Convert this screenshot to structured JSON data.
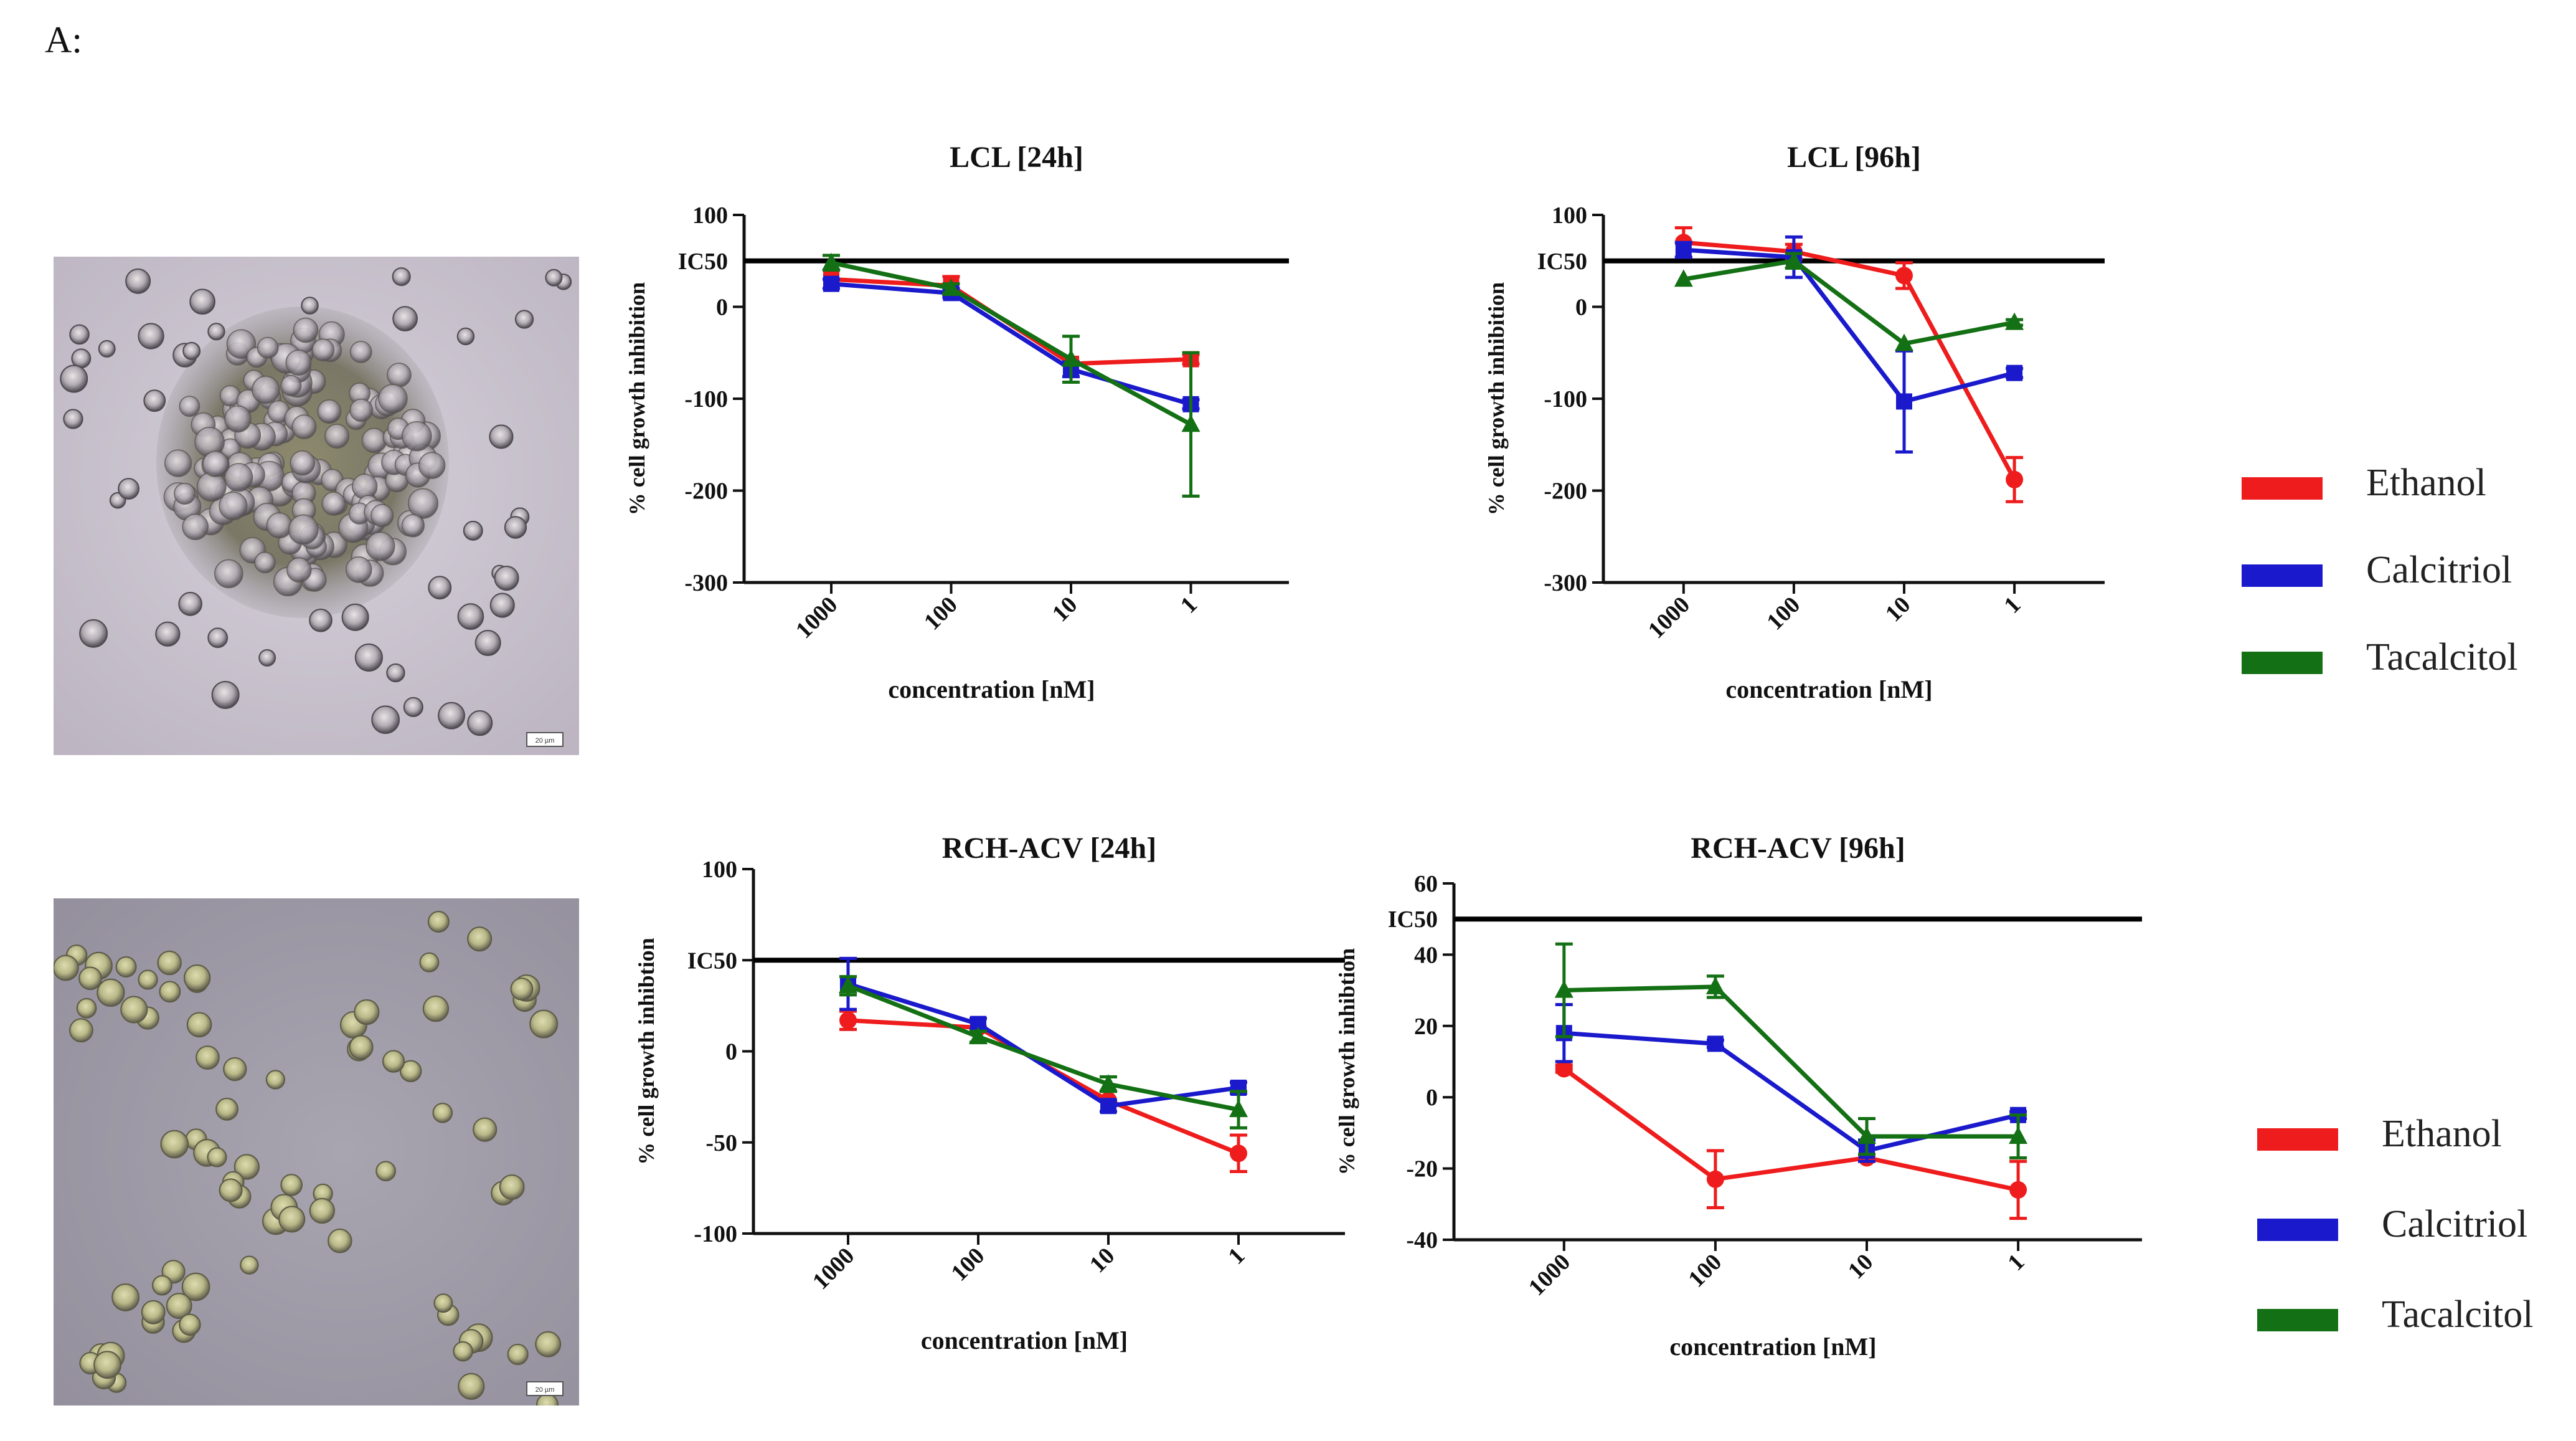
{
  "panel_label": "A:",
  "micrographs": [
    {
      "name": "LCL",
      "scale_label": "20 µm"
    },
    {
      "name": "RCH-ACV",
      "scale_label": "20 µm"
    }
  ],
  "series_colors": {
    "Ethanol": "#ee1c1c",
    "Calcitriol": "#1a1acc",
    "Tacalcitol": "#147014"
  },
  "legends": [
    {
      "items": [
        {
          "label": "Ethanol",
          "color": "#ee1c1c"
        },
        {
          "label": "Calcitriol",
          "color": "#1a1acc"
        },
        {
          "label": "Tacalcitol",
          "color": "#147014"
        }
      ]
    },
    {
      "items": [
        {
          "label": "Ethanol",
          "color": "#ee1c1c"
        },
        {
          "label": "Calcitriol",
          "color": "#1a1acc"
        },
        {
          "label": "Tacalcitol",
          "color": "#147014"
        }
      ]
    }
  ],
  "chart_data": [
    {
      "type": "line",
      "title": "LCL [24h]",
      "xlabel": "concentration [nM]",
      "ylabel": "% cell growth inhibition",
      "categories": [
        "1000",
        "100",
        "10",
        "1"
      ],
      "ylim": [
        -300,
        100
      ],
      "yticks": [
        100,
        0,
        -100,
        -200,
        -300
      ],
      "ic50": {
        "label": "IC50",
        "value": 50
      },
      "series": [
        {
          "name": "Ethanol",
          "marker": "square",
          "values": [
            30,
            23,
            -62,
            -57
          ],
          "errors": [
            0,
            10,
            0,
            5
          ]
        },
        {
          "name": "Calcitriol",
          "marker": "square",
          "values": [
            25,
            15,
            -68,
            -106
          ],
          "errors": [
            5,
            5,
            8,
            5
          ]
        },
        {
          "name": "Tacalcitol",
          "marker": "triangle",
          "values": [
            48,
            20,
            -57,
            -128
          ],
          "errors": [
            8,
            5,
            25,
            78
          ]
        }
      ]
    },
    {
      "type": "line",
      "title": "LCL [96h]",
      "xlabel": "concentration [nM]",
      "ylabel": "% cell growth inhibition",
      "categories": [
        "1000",
        "100",
        "10",
        "1"
      ],
      "ylim": [
        -300,
        100
      ],
      "yticks": [
        100,
        0,
        -100,
        -200,
        -300
      ],
      "ic50": {
        "label": "IC50",
        "value": 50
      },
      "series": [
        {
          "name": "Ethanol",
          "marker": "circle",
          "values": [
            70,
            60,
            34,
            -188
          ],
          "errors": [
            16,
            8,
            14,
            24
          ]
        },
        {
          "name": "Calcitriol",
          "marker": "square",
          "values": [
            62,
            54,
            -103,
            -72
          ],
          "errors": [
            8,
            22,
            55,
            5
          ]
        },
        {
          "name": "Tacalcitol",
          "marker": "triangle",
          "values": [
            30,
            50,
            -40,
            -17
          ],
          "errors": [
            0,
            8,
            0,
            3
          ]
        }
      ]
    },
    {
      "type": "line",
      "title": "RCH-ACV [24h]",
      "xlabel": "concentration [nM]",
      "ylabel": "% cell growth inhibtion",
      "categories": [
        "1000",
        "100",
        "10",
        "1"
      ],
      "ylim": [
        -100,
        100
      ],
      "yticks": [
        100,
        50,
        0,
        -50,
        -100
      ],
      "ytick_labels": [
        "100",
        "IC50",
        "0",
        "-50",
        "-100"
      ],
      "ic50": {
        "label": "",
        "value": 50
      },
      "series": [
        {
          "name": "Ethanol",
          "marker": "circle",
          "values": [
            17,
            13,
            -27,
            -56
          ],
          "errors": [
            5,
            0,
            0,
            10
          ]
        },
        {
          "name": "Calcitriol",
          "marker": "square",
          "values": [
            37,
            15,
            -30,
            -20
          ],
          "errors": [
            14,
            3,
            3,
            3
          ]
        },
        {
          "name": "Tacalcitol",
          "marker": "triangle",
          "values": [
            36,
            8,
            -18,
            -32
          ],
          "errors": [
            5,
            3,
            4,
            10
          ]
        }
      ]
    },
    {
      "type": "line",
      "title": "RCH-ACV [96h]",
      "xlabel": "concentration [nM]",
      "ylabel": "% cell growth inhibtion",
      "categories": [
        "1000",
        "100",
        "10",
        "1"
      ],
      "ylim": [
        -40,
        60
      ],
      "yticks": [
        60,
        40,
        20,
        0,
        -20,
        -40
      ],
      "ic50": {
        "label": "IC50",
        "value": 50
      },
      "series": [
        {
          "name": "Ethanol",
          "marker": "circle",
          "values": [
            8,
            -23,
            -17,
            -26
          ],
          "errors": [
            1,
            8,
            1,
            8
          ]
        },
        {
          "name": "Calcitriol",
          "marker": "square",
          "values": [
            18,
            15,
            -15,
            -5
          ],
          "errors": [
            8,
            1,
            3,
            1
          ]
        },
        {
          "name": "Tacalcitol",
          "marker": "triangle",
          "values": [
            30,
            31,
            -11,
            -11
          ],
          "errors": [
            13,
            3,
            5,
            6
          ]
        }
      ]
    }
  ]
}
